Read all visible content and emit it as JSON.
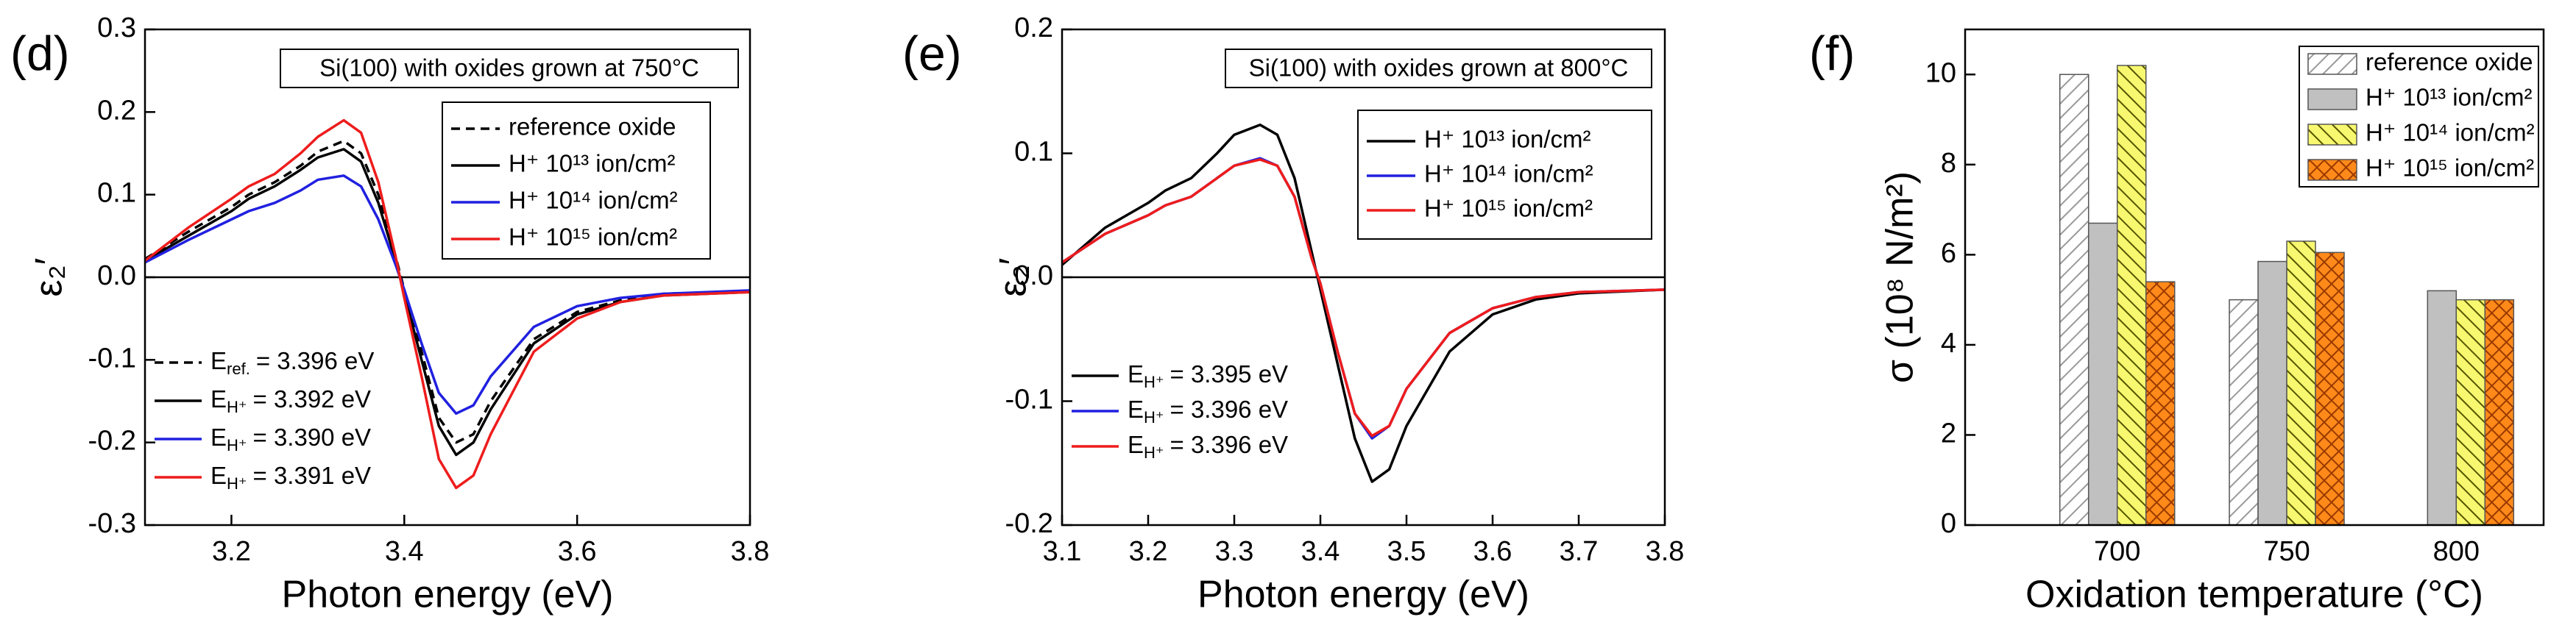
{
  "chart_data": [
    {
      "type": "line",
      "panel_label": "(d)",
      "title": "Si(100) with oxides grown at 750°C",
      "x_label": "Photon energy (eV)",
      "y_label": "ε₂′",
      "x": [
        3.1,
        3.15,
        3.2,
        3.22,
        3.25,
        3.28,
        3.3,
        3.33,
        3.35,
        3.37,
        3.39,
        3.4,
        3.42,
        3.44,
        3.46,
        3.48,
        3.5,
        3.55,
        3.6,
        3.65,
        3.7,
        3.8
      ],
      "xlim": [
        3.1,
        3.8
      ],
      "xticks": [
        3.2,
        3.4,
        3.6,
        3.8
      ],
      "ylim": [
        -0.3,
        0.3
      ],
      "yticks": [
        -0.3,
        -0.2,
        -0.1,
        {
          "value": 0,
          "label": "0.0"
        },
        0.1,
        0.2,
        0.3
      ],
      "zero_line": true,
      "series": [
        {
          "name": "reference oxide",
          "color": "#000000",
          "dash": true,
          "values": [
            0.022,
            0.055,
            0.085,
            0.1,
            0.115,
            0.135,
            0.152,
            0.165,
            0.15,
            0.1,
            0.025,
            -0.015,
            -0.09,
            -0.17,
            -0.2,
            -0.19,
            -0.15,
            -0.075,
            -0.042,
            -0.028,
            -0.02,
            -0.017
          ]
        },
        {
          "name": "H⁺ 10¹³ ion/cm²",
          "color": "#000000",
          "values": [
            0.02,
            0.05,
            0.08,
            0.095,
            0.11,
            0.13,
            0.145,
            0.155,
            0.14,
            0.09,
            0.02,
            -0.02,
            -0.1,
            -0.18,
            -0.215,
            -0.2,
            -0.16,
            -0.08,
            -0.045,
            -0.03,
            -0.022,
            -0.018
          ]
        },
        {
          "name": "H⁺ 10¹⁴ ion/cm²",
          "color": "#2020e0",
          "values": [
            0.018,
            0.045,
            0.07,
            0.08,
            0.09,
            0.105,
            0.118,
            0.123,
            0.11,
            0.07,
            0.015,
            -0.015,
            -0.08,
            -0.14,
            -0.165,
            -0.155,
            -0.12,
            -0.06,
            -0.035,
            -0.025,
            -0.02,
            -0.016
          ]
        },
        {
          "name": "H⁺ 10¹⁵ ion/cm²",
          "color": "#ee1c1c",
          "values": [
            0.02,
            0.06,
            0.095,
            0.11,
            0.125,
            0.15,
            0.17,
            0.19,
            0.175,
            0.115,
            0.025,
            -0.025,
            -0.12,
            -0.22,
            -0.255,
            -0.24,
            -0.19,
            -0.09,
            -0.05,
            -0.03,
            -0.022,
            -0.018
          ]
        }
      ],
      "annotations": [
        {
          "label": "E",
          "sub": "ref.",
          "text": "= 3.396 eV",
          "color": "#000000",
          "dash": true
        },
        {
          "label": "E",
          "sub": "H⁺",
          "text": "= 3.392 eV",
          "color": "#000000"
        },
        {
          "label": "E",
          "sub": "H⁺",
          "text": "= 3.390 eV",
          "color": "#2020e0"
        },
        {
          "label": "E",
          "sub": "H⁺",
          "text": "= 3.391 eV",
          "color": "#ee1c1c"
        }
      ]
    },
    {
      "type": "line",
      "panel_label": "(e)",
      "title": "Si(100) with oxides grown at 800°C",
      "x_label": "Photon energy (eV)",
      "y_label": "ε₂′",
      "x": [
        3.1,
        3.15,
        3.2,
        3.22,
        3.25,
        3.28,
        3.3,
        3.33,
        3.35,
        3.37,
        3.39,
        3.4,
        3.42,
        3.44,
        3.46,
        3.48,
        3.5,
        3.55,
        3.6,
        3.65,
        3.7,
        3.8
      ],
      "xlim": [
        3.1,
        3.8
      ],
      "xticks": [
        3.1,
        3.2,
        3.3,
        3.4,
        3.5,
        3.6,
        3.7,
        3.8
      ],
      "ylim": [
        -0.2,
        0.2
      ],
      "yticks": [
        -0.2,
        -0.1,
        {
          "value": 0,
          "label": "0.0"
        },
        0.1,
        0.2
      ],
      "zero_line": true,
      "series": [
        {
          "name": "H⁺ 10¹³ ion/cm²",
          "color": "#000000",
          "values": [
            0.01,
            0.04,
            0.06,
            0.07,
            0.08,
            0.1,
            0.115,
            0.123,
            0.115,
            0.08,
            0.02,
            -0.01,
            -0.07,
            -0.13,
            -0.165,
            -0.155,
            -0.12,
            -0.06,
            -0.03,
            -0.018,
            -0.013,
            -0.01
          ]
        },
        {
          "name": "H⁺ 10¹⁴ ion/cm²",
          "color": "#2020e0",
          "values": [
            0.012,
            0.035,
            0.05,
            0.058,
            0.065,
            0.08,
            0.09,
            0.096,
            0.09,
            0.065,
            0.015,
            -0.005,
            -0.06,
            -0.11,
            -0.13,
            -0.12,
            -0.09,
            -0.045,
            -0.025,
            -0.016,
            -0.012,
            -0.01
          ]
        },
        {
          "name": "H⁺ 10¹⁵ ion/cm²",
          "color": "#ee1c1c",
          "values": [
            0.012,
            0.035,
            0.05,
            0.058,
            0.065,
            0.08,
            0.09,
            0.095,
            0.09,
            0.065,
            0.015,
            -0.005,
            -0.06,
            -0.11,
            -0.128,
            -0.12,
            -0.09,
            -0.045,
            -0.025,
            -0.016,
            -0.012,
            -0.01
          ]
        }
      ],
      "annotations": [
        {
          "label": "E",
          "sub": "H⁺",
          "text": "= 3.395 eV",
          "color": "#000000"
        },
        {
          "label": "E",
          "sub": "H⁺",
          "text": "= 3.396 eV",
          "color": "#2020e0"
        },
        {
          "label": "E",
          "sub": "H⁺",
          "text": "= 3.396 eV",
          "color": "#ee1c1c"
        }
      ]
    },
    {
      "type": "bar",
      "panel_label": "(f)",
      "x_label": "Oxidation temperature (°C)",
      "y_label": "σ  (10⁸ N/m²)",
      "categories": [
        "700",
        "750",
        "800"
      ],
      "ylim": [
        0,
        11
      ],
      "yticks": [
        0,
        2,
        4,
        6,
        8,
        10
      ],
      "series": [
        {
          "name": "reference oxide",
          "color": "#ffffff",
          "pattern": "diag-right",
          "hatch_color": "#9a9a9a",
          "values": [
            10.0,
            5.0,
            null
          ]
        },
        {
          "name": "H⁺ 10¹³ ion/cm²",
          "color": "#c0c0c0",
          "values": [
            6.7,
            5.85,
            5.2
          ]
        },
        {
          "name": "H⁺ 10¹⁴ ion/cm²",
          "color": "#f8f870",
          "pattern": "diag-left",
          "hatch_color": "#555500",
          "values": [
            10.2,
            6.3,
            5.0
          ]
        },
        {
          "name": "H⁺ 10¹⁵ ion/cm²",
          "color": "#ff8a1a",
          "pattern": "cross",
          "hatch_color": "#9a3a00",
          "values": [
            5.4,
            6.05,
            5.0
          ]
        }
      ]
    }
  ]
}
